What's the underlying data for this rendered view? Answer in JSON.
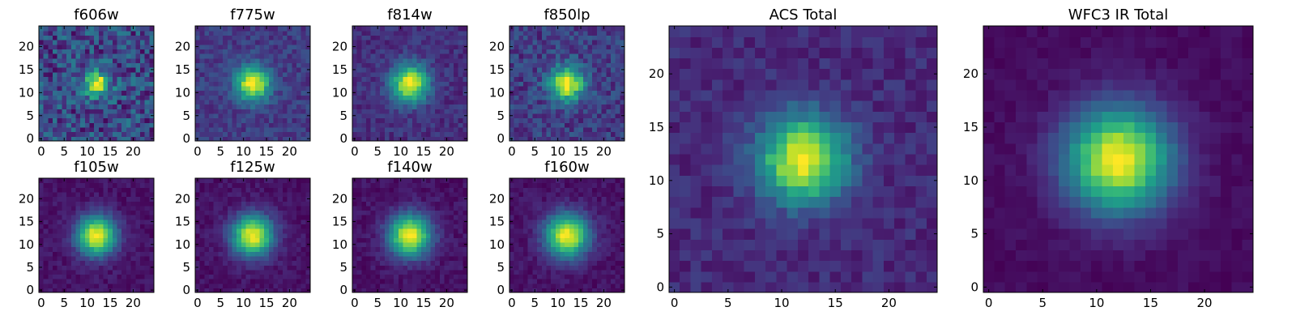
{
  "figure": {
    "colormap": "viridis",
    "colormap_stops": [
      "#440154",
      "#482878",
      "#3e4989",
      "#31688e",
      "#26828e",
      "#1f9e89",
      "#35b779",
      "#6ece58",
      "#b5de2b",
      "#fde725"
    ]
  },
  "chart_data": [
    {
      "type": "heatmap",
      "title": "f606w",
      "grid": [
        25,
        25
      ],
      "peak": [
        12,
        12
      ],
      "sigma": 2.0,
      "background": 0.22,
      "noise": 0.2,
      "xticks": [
        "0",
        "5",
        "10",
        "15",
        "20"
      ],
      "yticks": [
        "0",
        "5",
        "10",
        "15",
        "20"
      ]
    },
    {
      "type": "heatmap",
      "title": "f775w",
      "grid": [
        25,
        25
      ],
      "peak": [
        12,
        12
      ],
      "sigma": 2.6,
      "background": 0.18,
      "noise": 0.09,
      "xticks": [
        "0",
        "5",
        "10",
        "15",
        "20"
      ],
      "yticks": [
        "0",
        "5",
        "10",
        "15",
        "20"
      ]
    },
    {
      "type": "heatmap",
      "title": "f814w",
      "grid": [
        25,
        25
      ],
      "peak": [
        12,
        12
      ],
      "sigma": 2.8,
      "background": 0.14,
      "noise": 0.08,
      "xticks": [
        "0",
        "5",
        "10",
        "15",
        "20"
      ],
      "yticks": [
        "0",
        "5",
        "10",
        "15",
        "20"
      ]
    },
    {
      "type": "heatmap",
      "title": "f850lp",
      "grid": [
        25,
        25
      ],
      "peak": [
        12,
        12
      ],
      "sigma": 2.6,
      "background": 0.18,
      "noise": 0.12,
      "xticks": [
        "0",
        "5",
        "10",
        "15",
        "20"
      ],
      "yticks": [
        "0",
        "5",
        "10",
        "15",
        "20"
      ]
    },
    {
      "type": "heatmap",
      "title": "f105w",
      "grid": [
        25,
        25
      ],
      "peak": [
        12,
        12
      ],
      "sigma": 3.0,
      "background": 0.05,
      "noise": 0.05,
      "xticks": [
        "0",
        "5",
        "10",
        "15",
        "20"
      ],
      "yticks": [
        "0",
        "5",
        "10",
        "15",
        "20"
      ]
    },
    {
      "type": "heatmap",
      "title": "f125w",
      "grid": [
        25,
        25
      ],
      "peak": [
        12,
        12
      ],
      "sigma": 3.1,
      "background": 0.05,
      "noise": 0.05,
      "xticks": [
        "0",
        "5",
        "10",
        "15",
        "20"
      ],
      "yticks": [
        "0",
        "5",
        "10",
        "15",
        "20"
      ]
    },
    {
      "type": "heatmap",
      "title": "f140w",
      "grid": [
        25,
        25
      ],
      "peak": [
        12,
        12
      ],
      "sigma": 3.2,
      "background": 0.05,
      "noise": 0.05,
      "xticks": [
        "0",
        "5",
        "10",
        "15",
        "20"
      ],
      "yticks": [
        "0",
        "5",
        "10",
        "15",
        "20"
      ]
    },
    {
      "type": "heatmap",
      "title": "f160w",
      "grid": [
        25,
        25
      ],
      "peak": [
        12,
        12
      ],
      "sigma": 3.3,
      "background": 0.05,
      "noise": 0.05,
      "xticks": [
        "0",
        "5",
        "10",
        "15",
        "20"
      ],
      "yticks": [
        "0",
        "5",
        "10",
        "15",
        "20"
      ]
    },
    {
      "type": "heatmap",
      "title": "ACS Total",
      "grid": [
        25,
        25
      ],
      "peak": [
        12,
        12
      ],
      "sigma": 2.8,
      "background": 0.12,
      "noise": 0.07,
      "xticks": [
        "0",
        "5",
        "10",
        "15",
        "20"
      ],
      "yticks": [
        "0",
        "5",
        "10",
        "15",
        "20"
      ]
    },
    {
      "type": "heatmap",
      "title": "WFC3 IR Total",
      "grid": [
        25,
        25
      ],
      "peak": [
        12,
        12
      ],
      "sigma": 3.4,
      "background": 0.03,
      "noise": 0.03,
      "xticks": [
        "0",
        "5",
        "10",
        "15",
        "20"
      ],
      "yticks": [
        "0",
        "5",
        "10",
        "15",
        "20"
      ]
    }
  ]
}
